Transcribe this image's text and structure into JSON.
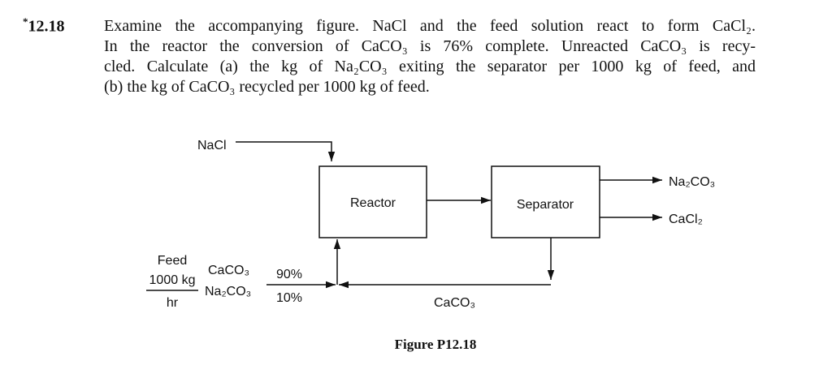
{
  "problem": {
    "star": "*",
    "number": "12.18",
    "lines": [
      "Examine the accompanying figure. NaCl and the feed solution react to form CaCl₂.",
      "In the reactor the conversion of CaCO₃ is 76% complete. Unreacted CaCO₃ is recy-",
      "cled. Calculate (a) the kg of Na₂CO₃ exiting the separator per 1000 kg of feed, and",
      "(b) the kg of CaCO₃ recycled per 1000 kg of feed."
    ]
  },
  "figure": {
    "nacl_label": "NaCl",
    "reactor_label": "Reactor",
    "separator_label": "Separator",
    "output_1": "Na₂CO₃",
    "output_2": "CaCl₂",
    "feed_label": "Feed",
    "feed_rate_numerator": "1000 kg",
    "feed_rate_denominator": "hr",
    "feed_component_1": "CaCO₃",
    "feed_component_2": "Na₂CO₃",
    "feed_fraction_1": "90%",
    "feed_fraction_2": "10%",
    "recycle_label": "CaCO₃",
    "caption": "Figure P12.18"
  }
}
